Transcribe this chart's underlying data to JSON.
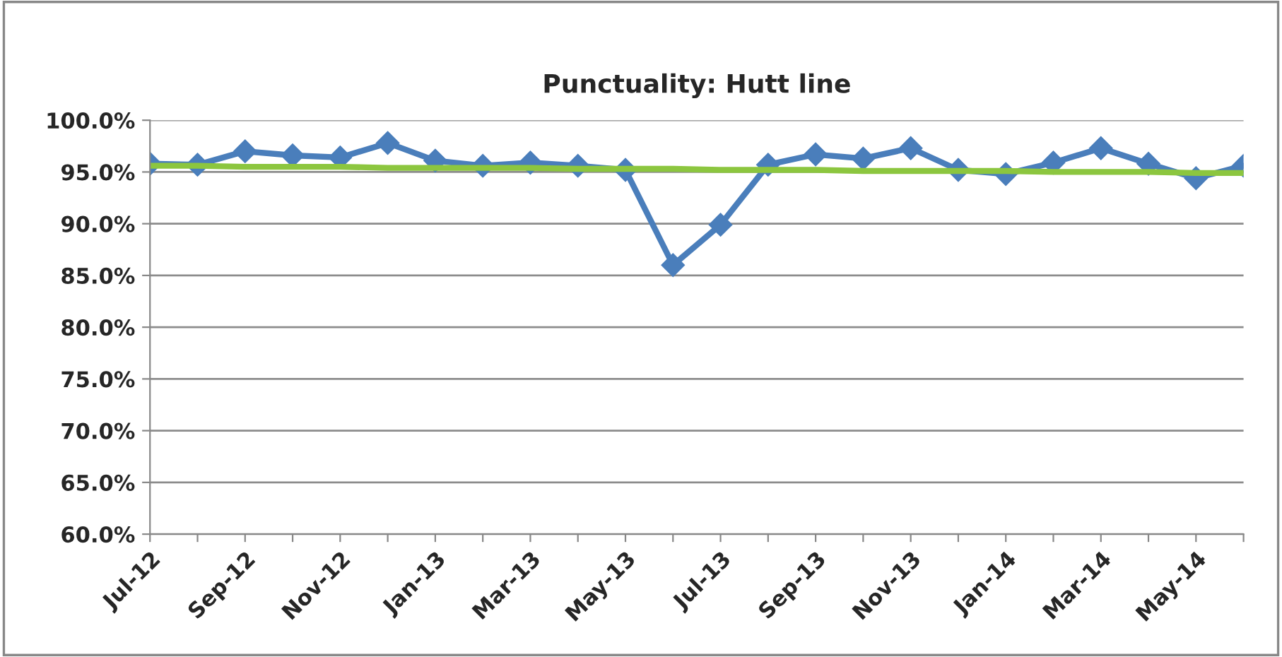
{
  "chart_data": {
    "type": "line",
    "title": "Punctuality: Hutt line",
    "categories": [
      "Jul-12",
      null,
      "Sep-12",
      null,
      "Nov-12",
      null,
      "Jan-13",
      null,
      "Mar-13",
      null,
      "May-13",
      null,
      "Jul-13",
      null,
      "Sep-13",
      null,
      "Nov-13",
      null,
      "Jan-14",
      null,
      "Mar-14",
      null,
      "May-14",
      null
    ],
    "series": [
      {
        "color": "#4a7ebb",
        "marker": "diamond",
        "values": [
          95.8,
          95.7,
          97.0,
          96.6,
          96.4,
          97.8,
          96.1,
          95.6,
          95.9,
          95.6,
          95.2,
          86.0,
          89.9,
          95.7,
          96.7,
          96.3,
          97.3,
          95.2,
          94.8,
          95.9,
          97.3,
          95.8,
          94.4,
          95.6
        ]
      },
      {
        "color": "#8cc63f",
        "marker": "none",
        "values": [
          95.6,
          95.6,
          95.5,
          95.5,
          95.5,
          95.4,
          95.4,
          95.4,
          95.4,
          95.3,
          95.3,
          95.3,
          95.2,
          95.2,
          95.2,
          95.1,
          95.1,
          95.1,
          95.1,
          95.0,
          95.0,
          95.0,
          94.9,
          94.9
        ]
      }
    ],
    "ylim": [
      60,
      100
    ],
    "yticks": [
      {
        "value": 60,
        "label": "60.0%"
      },
      {
        "value": 65,
        "label": "65.0%"
      },
      {
        "value": 70,
        "label": "70.0%"
      },
      {
        "value": 75,
        "label": "75.0%"
      },
      {
        "value": 80,
        "label": "80.0%"
      },
      {
        "value": 85,
        "label": "85.0%"
      },
      {
        "value": 90,
        "label": "90.0%"
      },
      {
        "value": 95,
        "label": "95.0%"
      },
      {
        "value": 100,
        "label": "100.0%"
      }
    ],
    "grid": "y",
    "legend": false,
    "line_style": "solid"
  }
}
